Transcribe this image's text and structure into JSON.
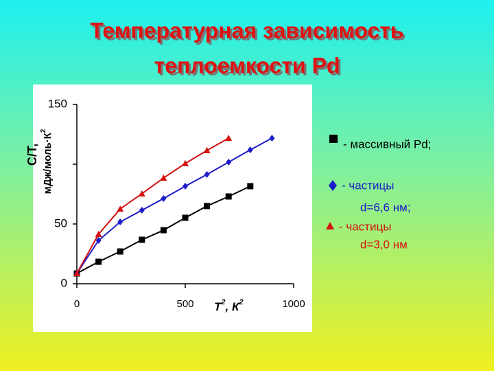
{
  "chart_data": {
    "type": "line",
    "title": [
      "Температурная зависимость",
      "теплоемкости Pd"
    ],
    "y_label": {
      "text": "С/Т,",
      "unit": "мДж/моль·К",
      "unit_sup": "2"
    },
    "x_label": {
      "text": "Т",
      "sup": "2",
      "unit": ", К",
      "unit_sup": "2"
    },
    "xlim": [
      0,
      1000
    ],
    "xticks": [
      0,
      500,
      1000
    ],
    "ylim": [
      0,
      150
    ],
    "yticks": [
      0,
      50,
      {
        "value": 100,
        "label": null
      },
      150
    ],
    "series": [
      {
        "name": [
          "- массивный Pd;"
        ],
        "color": "#000000",
        "marker": "square",
        "x": [
          0,
          100,
          200,
          300,
          400,
          500,
          600,
          700,
          800
        ],
        "values": [
          8.6,
          18.4,
          27,
          36.8,
          44.8,
          55.2,
          65,
          73,
          81.6
        ]
      },
      {
        "name": [
          "-  частицы",
          "d=6,6 нм;"
        ],
        "color": "#1c1cc8",
        "marker": "diamond",
        "x": [
          0,
          100,
          200,
          300,
          400,
          500,
          600,
          700,
          800,
          900
        ],
        "values": [
          8.6,
          36.2,
          51.7,
          61.5,
          71.3,
          81.6,
          91.4,
          101.7,
          112,
          121.8
        ]
      },
      {
        "name": [
          "- частицы",
          "d=3,0 нм"
        ],
        "color": "#d41010",
        "marker": "triangle",
        "x": [
          0,
          100,
          200,
          300,
          400,
          500,
          600,
          700
        ],
        "values": [
          8.6,
          41.4,
          62.6,
          75.3,
          88.5,
          100.6,
          111.5,
          121.8
        ]
      }
    ]
  }
}
